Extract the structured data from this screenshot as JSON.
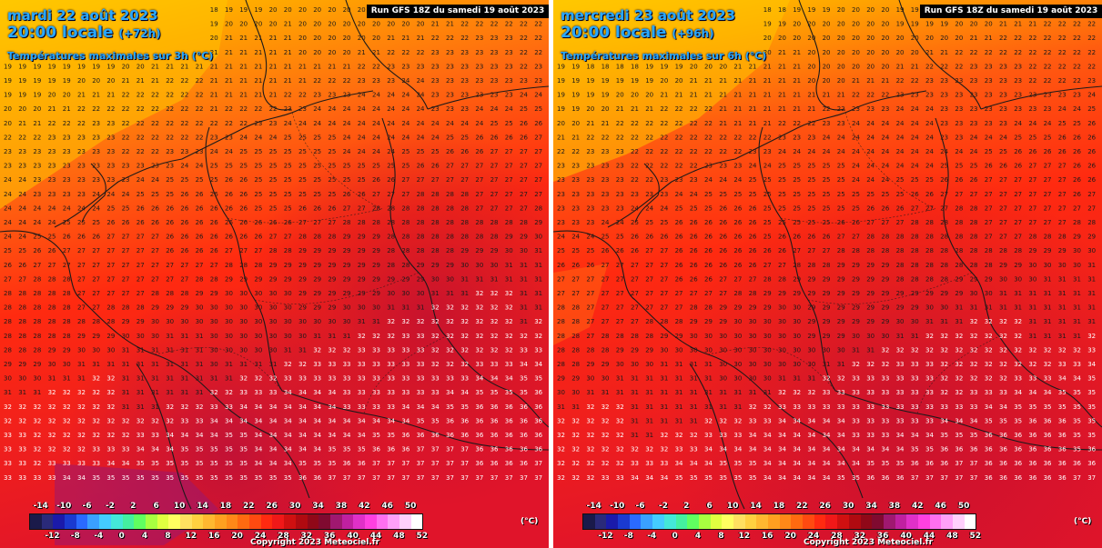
{
  "colors": {
    "background_cool": "#ffcc00",
    "background_warm": "#ff2a10",
    "background_hot": "#e0102a",
    "hot_core": "#c01030",
    "border_lines": "#1a1a1a"
  },
  "panels": [
    {
      "date_label": "mardi 22 août 2023",
      "time_label": "20:00 locale",
      "lead_label": "(+72h)",
      "param_label": "Températures maximales sur 3h (°C)",
      "run_label": "Run GFS 18Z du samedi 19 août 2023",
      "copyright": "Copyright 2023 Meteociel.fr",
      "scale_unit": "(°C)",
      "scale_top_ticks": [
        "-14",
        "-10",
        "-6",
        "-2",
        "2",
        "6",
        "10",
        "14",
        "18",
        "22",
        "26",
        "30",
        "34",
        "38",
        "42",
        "46",
        "50"
      ],
      "scale_bottom_ticks": [
        "-12",
        "-8",
        "-4",
        "0",
        "4",
        "8",
        "12",
        "16",
        "20",
        "24",
        "28",
        "32",
        "36",
        "40",
        "44",
        "48",
        "52"
      ],
      "map_icon": "temperature-map-icon"
    },
    {
      "date_label": "mercredi 23 août 2023",
      "time_label": "20:00 locale",
      "lead_label": "(+96h)",
      "param_label": "Températures maximales sur 6h (°C)",
      "run_label": "Run GFS 18Z du samedi 19 août 2023",
      "copyright": "Copyright 2023 Meteociel.fr",
      "scale_unit": "(°C)",
      "scale_top_ticks": [
        "-14",
        "-10",
        "-6",
        "-2",
        "2",
        "6",
        "10",
        "14",
        "18",
        "22",
        "26",
        "30",
        "34",
        "38",
        "42",
        "46",
        "50"
      ],
      "scale_bottom_ticks": [
        "-12",
        "-8",
        "-4",
        "0",
        "4",
        "8",
        "12",
        "16",
        "20",
        "24",
        "28",
        "32",
        "36",
        "40",
        "44",
        "48",
        "52"
      ],
      "map_icon": "temperature-map-icon"
    }
  ],
  "scale_colors": [
    "#1a1a4a",
    "#2a2a7a",
    "#1a1aaa",
    "#1a3ad0",
    "#2a6aff",
    "#3aa0ff",
    "#44ccff",
    "#44e8d8",
    "#44f0a0",
    "#60ff60",
    "#a8ff40",
    "#e0ff40",
    "#ffff60",
    "#ffe060",
    "#ffd040",
    "#ffb830",
    "#ffa020",
    "#ff8818",
    "#ff6a10",
    "#ff4a10",
    "#ff2a10",
    "#f01818",
    "#d01010",
    "#b00a10",
    "#900818",
    "#800a30",
    "#a01870",
    "#c020a0",
    "#e030c8",
    "#ff40e0",
    "#ff70f0",
    "#ffa0f8",
    "#ffd0fc",
    "#ffffff"
  ]
}
